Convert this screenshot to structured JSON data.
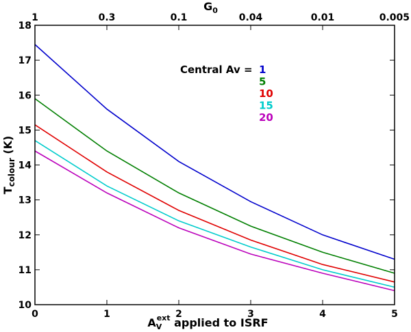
{
  "chart_data": {
    "type": "line",
    "title": "",
    "xlabel": "A_V^ext applied to ISRF",
    "xlabel_parts": {
      "base": "A",
      "sub": "V",
      "sup": "ext",
      "rest": " applied to ISRF"
    },
    "ylabel": "T_colour (K)",
    "ylabel_parts": {
      "base": "T",
      "sub": "colour",
      "rest": " (K)"
    },
    "top_axis_label": "G_0",
    "top_axis_label_parts": {
      "base": "G",
      "sub": "0"
    },
    "xlim": [
      0,
      5
    ],
    "ylim": [
      10,
      18
    ],
    "x_ticks": [
      0,
      1,
      2,
      3,
      4,
      5
    ],
    "x_tick_labels": [
      "0",
      "1",
      "2",
      "3",
      "4",
      "5"
    ],
    "y_ticks": [
      10,
      11,
      12,
      13,
      14,
      15,
      16,
      17,
      18
    ],
    "y_tick_labels": [
      "10",
      "11",
      "12",
      "13",
      "14",
      "15",
      "16",
      "17",
      "18"
    ],
    "top_ticks": [
      0,
      1,
      2,
      3,
      4,
      5
    ],
    "top_tick_labels": [
      "1",
      "0.3",
      "0.1",
      "0.04",
      "0.01",
      "0.005"
    ],
    "grid": false,
    "legend_title": "Central Av =",
    "legend_position": "top-right",
    "x": [
      0,
      1,
      2,
      3,
      4,
      5
    ],
    "series": [
      {
        "name": "1",
        "color": "#0000cc",
        "values": [
          17.45,
          15.6,
          14.1,
          12.95,
          12.0,
          11.3
        ]
      },
      {
        "name": "5",
        "color": "#007f00",
        "values": [
          15.9,
          14.4,
          13.2,
          12.25,
          11.5,
          10.9
        ]
      },
      {
        "name": "10",
        "color": "#e00000",
        "values": [
          15.15,
          13.8,
          12.7,
          11.85,
          11.15,
          10.65
        ]
      },
      {
        "name": "15",
        "color": "#00cccc",
        "values": [
          14.7,
          13.4,
          12.4,
          11.65,
          11.0,
          10.5
        ]
      },
      {
        "name": "20",
        "color": "#bb00bb",
        "values": [
          14.4,
          13.2,
          12.2,
          11.45,
          10.9,
          10.4
        ]
      }
    ]
  }
}
